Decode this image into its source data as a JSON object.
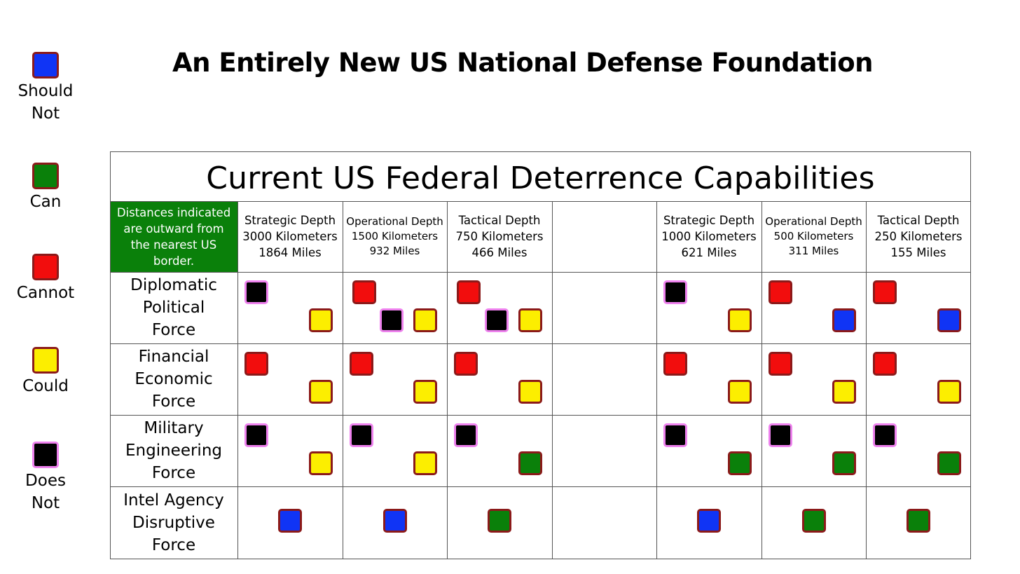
{
  "title": "An Entirely New US National Defense Foundation",
  "colors": {
    "blue": "#1034f5",
    "green": "#0a800a",
    "red": "#f20d0d",
    "yellow": "#fcee00",
    "black": "#000000",
    "border_dark_red": "#8b1a1a",
    "border_violet": "#ee82ee"
  },
  "legend": [
    {
      "color": "blue",
      "label": "Should Not"
    },
    {
      "color": "green",
      "label": "Can"
    },
    {
      "color": "red",
      "label": "Cannot"
    },
    {
      "color": "yellow",
      "label": "Could"
    },
    {
      "color": "black",
      "label": "Does Not"
    }
  ],
  "table": {
    "title": "Current US Federal Deterrence Capabilities",
    "note": "Distances indicated are outward  from the nearest US border.",
    "columns": [
      {
        "line1": "Strategic Depth",
        "line2": "3000 Kilometers",
        "line3": "1864 Miles"
      },
      {
        "line1": "Operational Depth",
        "line2": "1500 Kilometers",
        "line3": "932 Miles"
      },
      {
        "line1": "Tactical Depth",
        "line2": "750 Kilometers",
        "line3": "466 Miles"
      },
      {
        "line1": "",
        "line2": "",
        "line3": ""
      },
      {
        "line1": "Strategic Depth",
        "line2": "1000 Kilometers",
        "line3": "621 Miles"
      },
      {
        "line1": "Operational Depth",
        "line2": "500 Kilometers",
        "line3": "311 Miles"
      },
      {
        "line1": "Tactical Depth",
        "line2": "250 Kilometers",
        "line3": "155 Miles"
      }
    ],
    "rows": [
      {
        "line1": "Diplomatic",
        "line2": "Political",
        "line3": "Force"
      },
      {
        "line1": "Financial",
        "line2": "Economic",
        "line3": "Force"
      },
      {
        "line1": "Military",
        "line2": "Engineering",
        "line3": "Force"
      },
      {
        "line1": "Intel Agency",
        "line2": "Disruptive",
        "line3": "Force"
      }
    ],
    "cells": [
      [
        [
          "black",
          "yellow"
        ],
        [
          "red",
          "black",
          "yellow"
        ],
        [
          "red",
          "black",
          "yellow"
        ],
        [],
        [
          "black",
          "yellow"
        ],
        [
          "red",
          "blue"
        ],
        [
          "red",
          "blue"
        ]
      ],
      [
        [
          "red",
          "yellow"
        ],
        [
          "red",
          "yellow"
        ],
        [
          "red",
          "yellow"
        ],
        [],
        [
          "red",
          "yellow"
        ],
        [
          "red",
          "yellow"
        ],
        [
          "red",
          "yellow"
        ]
      ],
      [
        [
          "black",
          "yellow"
        ],
        [
          "black",
          "yellow"
        ],
        [
          "black",
          "green"
        ],
        [],
        [
          "black",
          "green"
        ],
        [
          "black",
          "green"
        ],
        [
          "black",
          "green"
        ]
      ],
      [
        [
          "blue"
        ],
        [
          "blue"
        ],
        [
          "green"
        ],
        [],
        [
          "blue"
        ],
        [
          "green"
        ],
        [
          "green"
        ]
      ]
    ]
  }
}
